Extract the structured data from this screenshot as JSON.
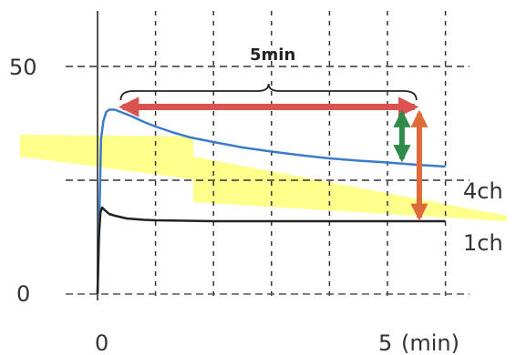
{
  "chart_data": {
    "type": "line",
    "title": "",
    "xlabel": "",
    "ylabel": "",
    "x_unit": "(min)",
    "xlim": [
      0,
      6
    ],
    "ylim": [
      0,
      62
    ],
    "x_ticks": [
      {
        "value": 0,
        "label": "0"
      },
      {
        "value": 5,
        "label": "5"
      }
    ],
    "y_ticks": [
      {
        "value": 0,
        "label": "0"
      },
      {
        "value": 50,
        "label": "50"
      }
    ],
    "grid": true,
    "series": [
      {
        "name": "4ch",
        "color": "#3a7cc9",
        "x": [
          0,
          0.02,
          0.06,
          0.1,
          0.15,
          0.2,
          0.3,
          0.4,
          0.6,
          0.8,
          1.0,
          1.3,
          1.6,
          2.0,
          2.5,
          3.0,
          3.5,
          4.0,
          4.5,
          5.0,
          5.5,
          6.0
        ],
        "y": [
          0,
          10,
          34,
          38,
          40,
          40.5,
          40.5,
          40,
          39,
          37.8,
          36.8,
          35.5,
          34.4,
          33.4,
          32.2,
          31.3,
          30.5,
          29.8,
          29.3,
          28.9,
          28.4,
          28.0
        ]
      },
      {
        "name": "1ch",
        "color": "#222222",
        "x": [
          0,
          0.02,
          0.05,
          0.08,
          0.12,
          0.2,
          0.3,
          0.5,
          0.8,
          1.0,
          1.5,
          2.0,
          3.0,
          4.0,
          5.0,
          5.5,
          6.0
        ],
        "y": [
          0,
          12,
          18,
          19,
          18.5,
          17.6,
          17.2,
          16.6,
          16.3,
          16.2,
          16.1,
          16.0,
          16.0,
          16.0,
          16.0,
          16.0,
          16.0
        ]
      }
    ],
    "annotations": [
      {
        "type": "brace",
        "from_x": 0.4,
        "to_x": 5.5,
        "label": "5min"
      },
      {
        "type": "double-arrow-horizontal",
        "from_x": 0.4,
        "to_x": 5.5,
        "y": 40.5,
        "color": "#d9534f"
      },
      {
        "type": "double-arrow-vertical",
        "x": 5.25,
        "from_y": 40.5,
        "to_y": 28.9,
        "color": "#2e8b4a"
      },
      {
        "type": "double-arrow-vertical",
        "x": 5.55,
        "from_y": 40.5,
        "to_y": 16.0,
        "color": "#e06b3a"
      },
      {
        "type": "highlight-wedge",
        "color": "#ffff66"
      }
    ]
  }
}
